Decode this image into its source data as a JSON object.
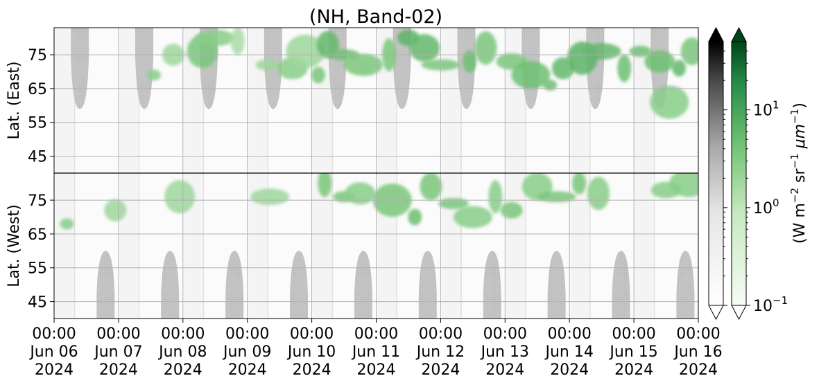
{
  "chart_data": {
    "type": "heatmap",
    "title": "(NH, Band-02)",
    "panels": [
      {
        "name": "east",
        "ylabel": "Lat. (East)",
        "y_ticks": [
          45,
          55,
          65,
          75
        ],
        "y_tick_labels": [
          "45",
          "55",
          "65",
          "75"
        ],
        "y_range": [
          40,
          83
        ],
        "y_direction": "increasing-upward"
      },
      {
        "name": "west",
        "ylabel": "Lat. (West)",
        "y_ticks": [
          75,
          65,
          55,
          45
        ],
        "y_tick_labels": [
          "75",
          "65",
          "55",
          "45"
        ],
        "y_range": [
          83,
          40
        ],
        "y_direction": "decreasing-upward"
      }
    ],
    "x_ticks": [
      {
        "line1": "00:00",
        "line2": "Jun 06",
        "line3": "2024"
      },
      {
        "line1": "00:00",
        "line2": "Jun 07",
        "line3": "2024"
      },
      {
        "line1": "00:00",
        "line2": "Jun 08",
        "line3": "2024"
      },
      {
        "line1": "00:00",
        "line2": "Jun 09",
        "line3": "2024"
      },
      {
        "line1": "00:00",
        "line2": "Jun 10",
        "line3": "2024"
      },
      {
        "line1": "00:00",
        "line2": "Jun 11",
        "line3": "2024"
      },
      {
        "line1": "00:00",
        "line2": "Jun 12",
        "line3": "2024"
      },
      {
        "line1": "00:00",
        "line2": "Jun 13",
        "line3": "2024"
      },
      {
        "line1": "00:00",
        "line2": "Jun 14",
        "line3": "2024"
      },
      {
        "line1": "00:00",
        "line2": "Jun 15",
        "line3": "2024"
      },
      {
        "line1": "00:00",
        "line2": "Jun 16",
        "line3": "2024"
      }
    ],
    "x_range": [
      "2024-06-06 00:00",
      "2024-06-16 00:00"
    ],
    "grid": true,
    "colorbars": [
      {
        "name": "grey",
        "colormap": "Greys",
        "scale": "log",
        "range": [
          0.1,
          50
        ],
        "extend": "both"
      },
      {
        "name": "green",
        "colormap": "Greens",
        "scale": "log",
        "range": [
          0.1,
          50
        ],
        "extend": "both",
        "ticks": [
          {
            "base": "10",
            "exp": "1",
            "value": 10
          },
          {
            "base": "10",
            "exp": "0",
            "value": 1
          },
          {
            "base": "10",
            "exp": "−1",
            "value": 0.1
          }
        ]
      }
    ],
    "colorbar_label": {
      "prefix": "(W m",
      "exp1": "−2",
      "mid": " sr",
      "exp2": "−1",
      "mu": " μm",
      "exp3": "−1",
      "suffix": ")"
    },
    "greyed_regions_east": [
      {
        "center_day": 0.4,
        "half_width_days": 0.14,
        "lat_bottom": 59
      },
      {
        "center_day": 1.4,
        "half_width_days": 0.14,
        "lat_bottom": 59
      },
      {
        "center_day": 2.4,
        "half_width_days": 0.14,
        "lat_bottom": 59
      },
      {
        "center_day": 3.4,
        "half_width_days": 0.14,
        "lat_bottom": 59
      },
      {
        "center_day": 4.4,
        "half_width_days": 0.14,
        "lat_bottom": 59
      },
      {
        "center_day": 5.4,
        "half_width_days": 0.14,
        "lat_bottom": 59
      },
      {
        "center_day": 6.4,
        "half_width_days": 0.14,
        "lat_bottom": 59
      },
      {
        "center_day": 7.4,
        "half_width_days": 0.14,
        "lat_bottom": 59
      },
      {
        "center_day": 8.4,
        "half_width_days": 0.14,
        "lat_bottom": 59
      },
      {
        "center_day": 9.4,
        "half_width_days": 0.14,
        "lat_bottom": 59
      }
    ],
    "greyed_regions_west": [
      {
        "center_day": 0.8,
        "half_width_days": 0.14,
        "lat_top": 60
      },
      {
        "center_day": 1.8,
        "half_width_days": 0.14,
        "lat_top": 60
      },
      {
        "center_day": 2.8,
        "half_width_days": 0.14,
        "lat_top": 60
      },
      {
        "center_day": 3.8,
        "half_width_days": 0.14,
        "lat_top": 60
      },
      {
        "center_day": 4.8,
        "half_width_days": 0.14,
        "lat_top": 60
      },
      {
        "center_day": 5.8,
        "half_width_days": 0.14,
        "lat_top": 60
      },
      {
        "center_day": 6.8,
        "half_width_days": 0.14,
        "lat_top": 60
      },
      {
        "center_day": 7.8,
        "half_width_days": 0.14,
        "lat_top": 60
      },
      {
        "center_day": 8.8,
        "half_width_days": 0.14,
        "lat_top": 60
      },
      {
        "center_day": 9.8,
        "half_width_days": 0.14,
        "lat_top": 60
      }
    ],
    "green_patches_east": [
      {
        "day": 1.55,
        "lat": 69,
        "value": 1.5
      },
      {
        "day": 1.85,
        "lat": 75,
        "value": 1.0
      },
      {
        "day": 2.3,
        "lat": 76,
        "value": 2.0
      },
      {
        "day": 2.5,
        "lat": 80,
        "value": 1.5
      },
      {
        "day": 2.85,
        "lat": 79,
        "value": 0.8
      },
      {
        "day": 3.3,
        "lat": 72,
        "value": 1.0
      },
      {
        "day": 3.7,
        "lat": 71,
        "value": 1.5
      },
      {
        "day": 3.9,
        "lat": 76,
        "value": 1.0
      },
      {
        "day": 4.1,
        "lat": 69,
        "value": 2.0
      },
      {
        "day": 4.25,
        "lat": 78,
        "value": 3.0
      },
      {
        "day": 4.5,
        "lat": 75,
        "value": 2.5
      },
      {
        "day": 4.8,
        "lat": 72,
        "value": 2.0
      },
      {
        "day": 5.2,
        "lat": 75,
        "value": 2.0
      },
      {
        "day": 5.5,
        "lat": 80,
        "value": 3.5
      },
      {
        "day": 5.75,
        "lat": 77,
        "value": 3.0
      },
      {
        "day": 6.0,
        "lat": 72,
        "value": 2.0
      },
      {
        "day": 6.45,
        "lat": 73,
        "value": 2.5
      },
      {
        "day": 6.7,
        "lat": 77,
        "value": 2.0
      },
      {
        "day": 7.1,
        "lat": 73,
        "value": 2.0
      },
      {
        "day": 7.4,
        "lat": 69,
        "value": 2.5
      },
      {
        "day": 7.7,
        "lat": 66,
        "value": 2.5
      },
      {
        "day": 7.9,
        "lat": 71,
        "value": 3.0
      },
      {
        "day": 8.2,
        "lat": 74,
        "value": 3.5
      },
      {
        "day": 8.5,
        "lat": 76,
        "value": 3.0
      },
      {
        "day": 8.85,
        "lat": 71,
        "value": 2.5
      },
      {
        "day": 9.1,
        "lat": 76,
        "value": 2.5
      },
      {
        "day": 9.4,
        "lat": 73,
        "value": 2.5
      },
      {
        "day": 9.55,
        "lat": 61,
        "value": 1.5
      },
      {
        "day": 9.7,
        "lat": 71,
        "value": 3.0
      },
      {
        "day": 9.9,
        "lat": 76,
        "value": 2.0
      }
    ],
    "green_patches_west": [
      {
        "day": 0.2,
        "lat": 68,
        "value": 1.5
      },
      {
        "day": 0.95,
        "lat": 72,
        "value": 1.0
      },
      {
        "day": 1.95,
        "lat": 76,
        "value": 1.0
      },
      {
        "day": 3.35,
        "lat": 76,
        "value": 1.0
      },
      {
        "day": 4.2,
        "lat": 80,
        "value": 2.0
      },
      {
        "day": 4.5,
        "lat": 76,
        "value": 2.0
      },
      {
        "day": 4.75,
        "lat": 77,
        "value": 1.5
      },
      {
        "day": 5.25,
        "lat": 75,
        "value": 2.0
      },
      {
        "day": 5.6,
        "lat": 70,
        "value": 2.5
      },
      {
        "day": 5.85,
        "lat": 79,
        "value": 2.0
      },
      {
        "day": 6.2,
        "lat": 74,
        "value": 2.0
      },
      {
        "day": 6.5,
        "lat": 70,
        "value": 1.5
      },
      {
        "day": 6.85,
        "lat": 76,
        "value": 1.5
      },
      {
        "day": 7.1,
        "lat": 72,
        "value": 2.0
      },
      {
        "day": 7.5,
        "lat": 79,
        "value": 1.5
      },
      {
        "day": 7.8,
        "lat": 76,
        "value": 2.0
      },
      {
        "day": 8.15,
        "lat": 80,
        "value": 2.0
      },
      {
        "day": 8.45,
        "lat": 77,
        "value": 1.5
      },
      {
        "day": 9.5,
        "lat": 78,
        "value": 1.5
      },
      {
        "day": 9.85,
        "lat": 80,
        "value": 1.5
      }
    ]
  }
}
